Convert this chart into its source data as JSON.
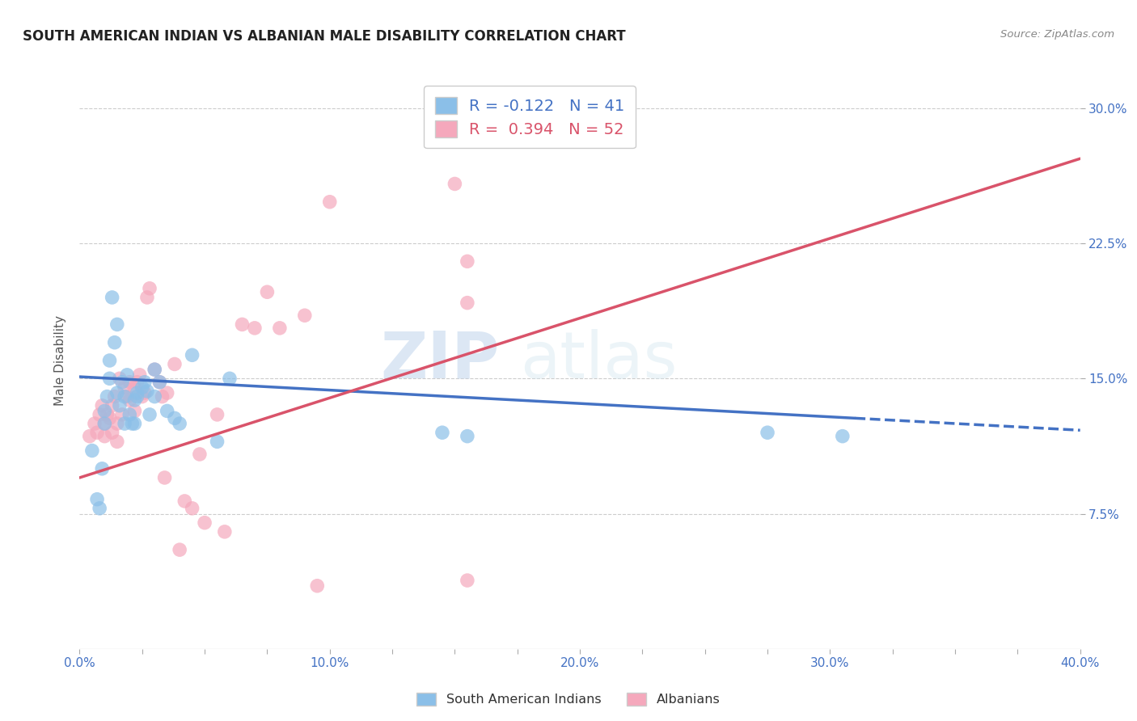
{
  "title": "SOUTH AMERICAN INDIAN VS ALBANIAN MALE DISABILITY CORRELATION CHART",
  "source": "Source: ZipAtlas.com",
  "ylabel": "Male Disability",
  "xlim": [
    0.0,
    0.4
  ],
  "ylim": [
    0.0,
    0.32
  ],
  "yticks": [
    0.075,
    0.15,
    0.225,
    0.3
  ],
  "ytick_labels": [
    "7.5%",
    "15.0%",
    "22.5%",
    "30.0%"
  ],
  "xtick_labels": [
    "0.0%",
    "",
    "",
    "",
    "10.0%",
    "",
    "",
    "",
    "20.0%",
    "",
    "",
    "",
    "30.0%",
    "",
    "",
    "",
    "40.0%"
  ],
  "blue_R": "-0.122",
  "blue_N": "41",
  "pink_R": "0.394",
  "pink_N": "52",
  "blue_color": "#8bbfe8",
  "pink_color": "#f5a8bc",
  "blue_line_color": "#4472c4",
  "pink_line_color": "#d9536a",
  "watermark_zip": "ZIP",
  "watermark_atlas": "atlas",
  "legend_label_blue": "South American Indians",
  "legend_label_pink": "Albanians",
  "blue_scatter_x": [
    0.005,
    0.007,
    0.008,
    0.009,
    0.01,
    0.01,
    0.011,
    0.012,
    0.012,
    0.013,
    0.014,
    0.015,
    0.015,
    0.016,
    0.017,
    0.018,
    0.018,
    0.019,
    0.02,
    0.021,
    0.022,
    0.022,
    0.023,
    0.023,
    0.025,
    0.026,
    0.027,
    0.028,
    0.03,
    0.03,
    0.032,
    0.035,
    0.038,
    0.04,
    0.045,
    0.055,
    0.06,
    0.155,
    0.275,
    0.305,
    0.145
  ],
  "blue_scatter_y": [
    0.11,
    0.083,
    0.078,
    0.1,
    0.125,
    0.132,
    0.14,
    0.15,
    0.16,
    0.195,
    0.17,
    0.18,
    0.142,
    0.135,
    0.148,
    0.125,
    0.14,
    0.152,
    0.13,
    0.125,
    0.125,
    0.138,
    0.14,
    0.142,
    0.145,
    0.148,
    0.143,
    0.13,
    0.155,
    0.14,
    0.148,
    0.132,
    0.128,
    0.125,
    0.163,
    0.115,
    0.15,
    0.118,
    0.12,
    0.118,
    0.12
  ],
  "pink_scatter_x": [
    0.004,
    0.006,
    0.007,
    0.008,
    0.009,
    0.01,
    0.01,
    0.011,
    0.012,
    0.013,
    0.013,
    0.014,
    0.015,
    0.015,
    0.016,
    0.017,
    0.018,
    0.019,
    0.02,
    0.02,
    0.022,
    0.022,
    0.023,
    0.024,
    0.025,
    0.026,
    0.027,
    0.028,
    0.03,
    0.032,
    0.033,
    0.034,
    0.035,
    0.038,
    0.04,
    0.042,
    0.045,
    0.048,
    0.05,
    0.055,
    0.058,
    0.065,
    0.07,
    0.075,
    0.08,
    0.09,
    0.095,
    0.1,
    0.15,
    0.155,
    0.155,
    0.155
  ],
  "pink_scatter_y": [
    0.118,
    0.125,
    0.12,
    0.13,
    0.135,
    0.125,
    0.118,
    0.13,
    0.128,
    0.12,
    0.135,
    0.14,
    0.115,
    0.125,
    0.15,
    0.13,
    0.145,
    0.14,
    0.148,
    0.138,
    0.132,
    0.145,
    0.148,
    0.152,
    0.14,
    0.142,
    0.195,
    0.2,
    0.155,
    0.148,
    0.14,
    0.095,
    0.142,
    0.158,
    0.055,
    0.082,
    0.078,
    0.108,
    0.07,
    0.13,
    0.065,
    0.18,
    0.178,
    0.198,
    0.178,
    0.185,
    0.035,
    0.248,
    0.258,
    0.192,
    0.215,
    0.038
  ],
  "blue_line_x0": 0.0,
  "blue_line_y0": 0.151,
  "blue_line_x1": 0.31,
  "blue_line_y1": 0.128,
  "blue_line_xd0": 0.31,
  "blue_line_xd1": 0.4,
  "pink_line_x0": 0.0,
  "pink_line_y0": 0.095,
  "pink_line_x1": 0.4,
  "pink_line_y1": 0.272
}
